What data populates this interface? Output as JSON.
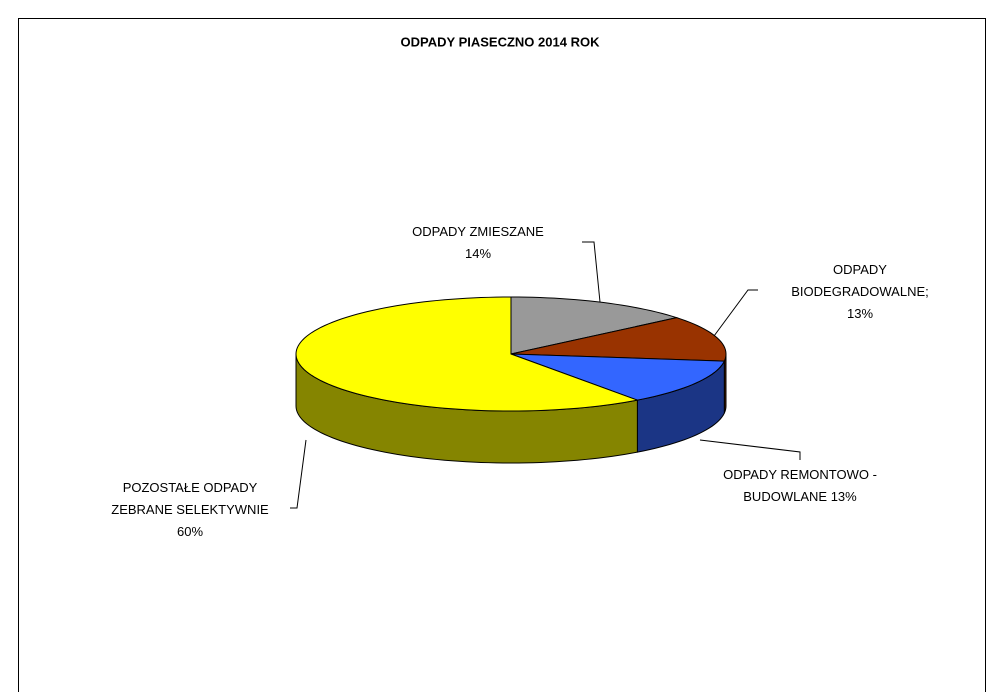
{
  "chart_data": {
    "type": "pie",
    "title": "ODPADY PIASECZNO 2014 ROK",
    "categories": [
      "ODPADY ZMIESZANE",
      "ODPADY BIODEGRADOWALNE;",
      "ODPADY REMONTOWO - BUDOWLANE",
      "POZOSTAŁE ODPADY ZEBRANE SELEKTYWNIE"
    ],
    "values": [
      14,
      13,
      13,
      60
    ],
    "value_labels": [
      "14%",
      "13%",
      "13%",
      "60%"
    ],
    "colors": [
      "#999999",
      "#993300",
      "#3366ff",
      "#ffff00"
    ]
  }
}
